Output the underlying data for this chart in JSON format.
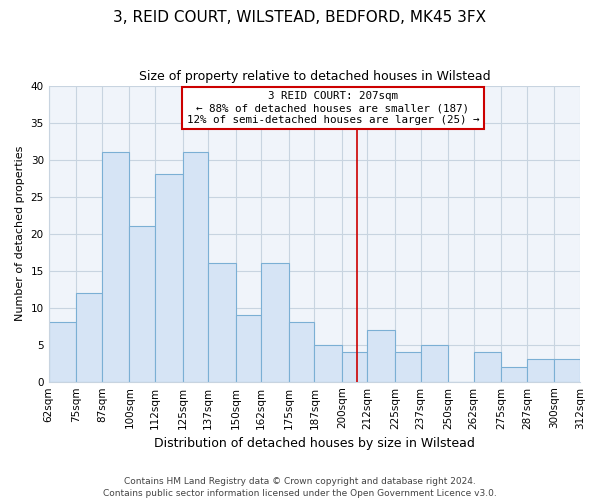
{
  "title": "3, REID COURT, WILSTEAD, BEDFORD, MK45 3FX",
  "subtitle": "Size of property relative to detached houses in Wilstead",
  "xlabel": "Distribution of detached houses by size in Wilstead",
  "ylabel": "Number of detached properties",
  "bar_color": "#d6e4f5",
  "bar_edge_color": "#7bafd4",
  "background_color": "#ffffff",
  "plot_bg_color": "#f0f4fa",
  "grid_color": "#c8d4e0",
  "annotation_line_color": "#cc0000",
  "annotation_box_edge_color": "#cc0000",
  "annotation_text_line1": "3 REID COURT: 207sqm",
  "annotation_text_line2": "← 88% of detached houses are smaller (187)",
  "annotation_text_line3": "12% of semi-detached houses are larger (25) →",
  "footer_lines": [
    "Contains HM Land Registry data © Crown copyright and database right 2024.",
    "Contains public sector information licensed under the Open Government Licence v3.0."
  ],
  "bins": [
    62,
    75,
    87,
    100,
    112,
    125,
    137,
    150,
    162,
    175,
    187,
    200,
    212,
    225,
    237,
    250,
    262,
    275,
    287,
    300,
    312
  ],
  "counts": [
    8,
    12,
    31,
    21,
    28,
    31,
    16,
    9,
    16,
    8,
    5,
    4,
    7,
    4,
    5,
    0,
    4,
    2,
    3,
    3
  ],
  "property_sqm": 207,
  "ylim": [
    0,
    40
  ],
  "yticks": [
    0,
    5,
    10,
    15,
    20,
    25,
    30,
    35,
    40
  ],
  "title_fontsize": 11,
  "subtitle_fontsize": 9,
  "xlabel_fontsize": 9,
  "ylabel_fontsize": 8,
  "tick_fontsize": 7.5,
  "footer_fontsize": 6.5
}
